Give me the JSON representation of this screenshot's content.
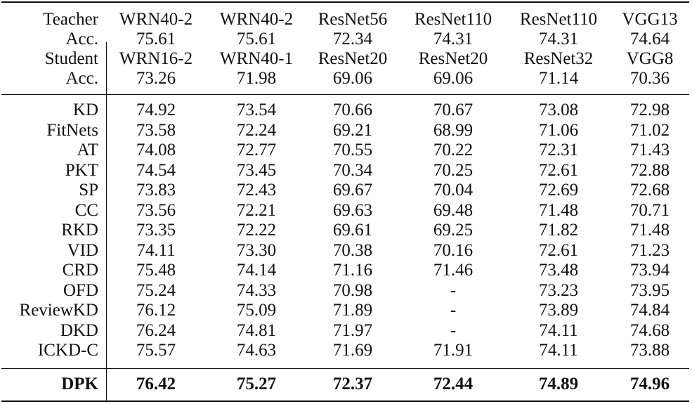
{
  "table": {
    "header_rows": [
      [
        "Teacher",
        "WRN40-2",
        "WRN40-2",
        "ResNet56",
        "ResNet110",
        "ResNet110",
        "VGG13"
      ],
      [
        "Acc.",
        "75.61",
        "75.61",
        "72.34",
        "74.31",
        "74.31",
        "74.64"
      ],
      [
        "Student",
        "WRN16-2",
        "WRN40-1",
        "ResNet20",
        "ResNet20",
        "ResNet32",
        "VGG8"
      ],
      [
        "Acc.",
        "73.26",
        "71.98",
        "69.06",
        "69.06",
        "71.14",
        "70.36"
      ]
    ],
    "rows": [
      [
        "KD",
        "74.92",
        "73.54",
        "70.66",
        "70.67",
        "73.08",
        "72.98"
      ],
      [
        "FitNets",
        "73.58",
        "72.24",
        "69.21",
        "68.99",
        "71.06",
        "71.02"
      ],
      [
        "AT",
        "74.08",
        "72.77",
        "70.55",
        "70.22",
        "72.31",
        "71.43"
      ],
      [
        "PKT",
        "74.54",
        "73.45",
        "70.34",
        "70.25",
        "72.61",
        "72.88"
      ],
      [
        "SP",
        "73.83",
        "72.43",
        "69.67",
        "70.04",
        "72.69",
        "72.68"
      ],
      [
        "CC",
        "73.56",
        "72.21",
        "69.63",
        "69.48",
        "71.48",
        "70.71"
      ],
      [
        "RKD",
        "73.35",
        "72.22",
        "69.61",
        "69.25",
        "71.82",
        "71.48"
      ],
      [
        "VID",
        "74.11",
        "73.30",
        "70.38",
        "70.16",
        "72.61",
        "71.23"
      ],
      [
        "CRD",
        "75.48",
        "74.14",
        "71.16",
        "71.46",
        "73.48",
        "73.94"
      ],
      [
        "OFD",
        "75.24",
        "74.33",
        "70.98",
        "-",
        "73.23",
        "73.95"
      ],
      [
        "ReviewKD",
        "76.12",
        "75.09",
        "71.89",
        "-",
        "73.89",
        "74.84"
      ],
      [
        "DKD",
        "76.24",
        "74.81",
        "71.97",
        "-",
        "74.11",
        "74.68"
      ],
      [
        "ICKD-C",
        "75.57",
        "74.63",
        "71.69",
        "71.91",
        "74.11",
        "73.88"
      ]
    ],
    "final_row": [
      "DPK",
      "76.42",
      "75.27",
      "72.37",
      "72.44",
      "74.89",
      "74.96"
    ]
  }
}
